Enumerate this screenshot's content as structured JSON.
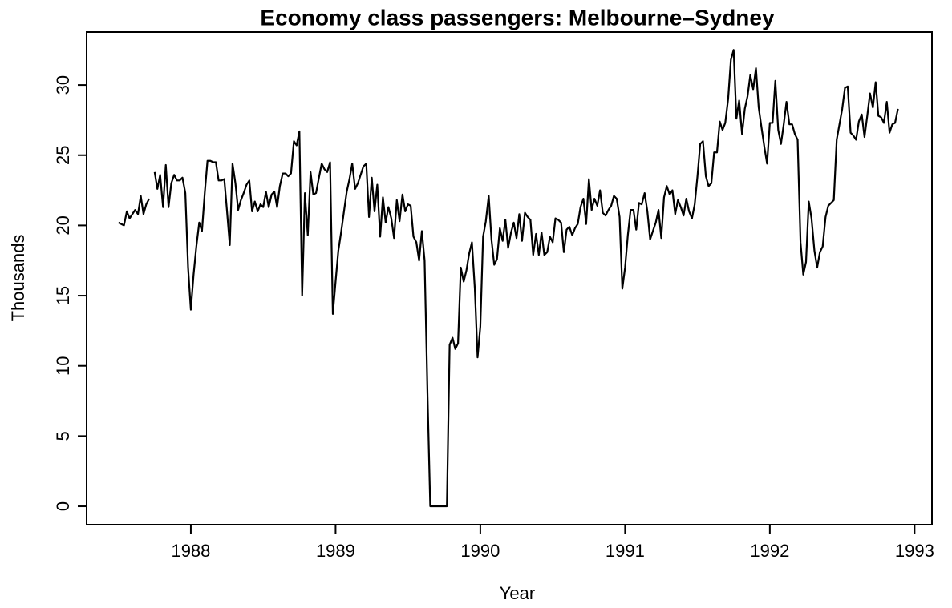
{
  "chart_data": {
    "type": "line",
    "title": "Economy class passengers: Melbourne–Sydney",
    "x_label": "Year",
    "y_label": "Thousands",
    "xlim": [
      1987.28,
      1993.12
    ],
    "ylim": [
      -1.31,
      33.77
    ],
    "xticks": [
      1988,
      1989,
      1990,
      1991,
      1992,
      1993
    ],
    "yticks": [
      0,
      5,
      10,
      15,
      20,
      25,
      30
    ],
    "grid": false,
    "series": [
      {
        "name": "Economy.Class",
        "color": "#000000",
        "x": [
          1987.5,
          1987.519,
          1987.538,
          1987.558,
          1987.577,
          1987.596,
          1987.615,
          1987.635,
          1987.654,
          1987.673,
          1987.692,
          1987.712,
          1987.731,
          1987.75,
          1987.769,
          1987.788,
          1987.808,
          1987.827,
          1987.846,
          1987.865,
          1987.885,
          1987.904,
          1987.923,
          1987.942,
          1987.962,
          1987.981,
          1988,
          1988.019,
          1988.038,
          1988.058,
          1988.077,
          1988.096,
          1988.115,
          1988.135,
          1988.154,
          1988.173,
          1988.192,
          1988.212,
          1988.231,
          1988.25,
          1988.269,
          1988.288,
          1988.308,
          1988.327,
          1988.346,
          1988.365,
          1988.385,
          1988.404,
          1988.423,
          1988.442,
          1988.462,
          1988.481,
          1988.5,
          1988.519,
          1988.538,
          1988.558,
          1988.577,
          1988.596,
          1988.615,
          1988.635,
          1988.654,
          1988.673,
          1988.692,
          1988.712,
          1988.731,
          1988.75,
          1988.769,
          1988.788,
          1988.808,
          1988.827,
          1988.846,
          1988.865,
          1988.885,
          1988.904,
          1988.923,
          1988.942,
          1988.962,
          1988.981,
          1989,
          1989.019,
          1989.038,
          1989.058,
          1989.077,
          1989.096,
          1989.115,
          1989.135,
          1989.154,
          1989.173,
          1989.192,
          1989.212,
          1989.231,
          1989.25,
          1989.269,
          1989.288,
          1989.308,
          1989.327,
          1989.346,
          1989.365,
          1989.385,
          1989.404,
          1989.423,
          1989.442,
          1989.462,
          1989.481,
          1989.5,
          1989.519,
          1989.538,
          1989.558,
          1989.577,
          1989.596,
          1989.615,
          1989.635,
          1989.654,
          1989.673,
          1989.692,
          1989.712,
          1989.731,
          1989.75,
          1989.769,
          1989.788,
          1989.808,
          1989.827,
          1989.846,
          1989.865,
          1989.885,
          1989.904,
          1989.923,
          1989.942,
          1989.962,
          1989.981,
          1990,
          1990.019,
          1990.038,
          1990.058,
          1990.077,
          1990.096,
          1990.115,
          1990.135,
          1990.154,
          1990.173,
          1990.192,
          1990.212,
          1990.231,
          1990.25,
          1990.269,
          1990.288,
          1990.308,
          1990.327,
          1990.346,
          1990.365,
          1990.385,
          1990.404,
          1990.423,
          1990.442,
          1990.462,
          1990.481,
          1990.5,
          1990.519,
          1990.538,
          1990.558,
          1990.577,
          1990.596,
          1990.615,
          1990.635,
          1990.654,
          1990.673,
          1990.692,
          1990.712,
          1990.731,
          1990.75,
          1990.769,
          1990.788,
          1990.808,
          1990.827,
          1990.846,
          1990.865,
          1990.885,
          1990.904,
          1990.923,
          1990.942,
          1990.962,
          1990.981,
          1991,
          1991.019,
          1991.038,
          1991.058,
          1991.077,
          1991.096,
          1991.115,
          1991.135,
          1991.154,
          1991.173,
          1991.192,
          1991.212,
          1991.231,
          1991.25,
          1991.269,
          1991.288,
          1991.308,
          1991.327,
          1991.346,
          1991.365,
          1991.385,
          1991.404,
          1991.423,
          1991.442,
          1991.462,
          1991.481,
          1991.5,
          1991.519,
          1991.538,
          1991.558,
          1991.577,
          1991.596,
          1991.615,
          1991.635,
          1991.654,
          1991.673,
          1991.692,
          1991.712,
          1991.731,
          1991.75,
          1991.769,
          1991.788,
          1991.808,
          1991.827,
          1991.846,
          1991.865,
          1991.885,
          1991.904,
          1991.923,
          1991.942,
          1991.962,
          1991.981,
          1992,
          1992.019,
          1992.038,
          1992.058,
          1992.077,
          1992.096,
          1992.115,
          1992.135,
          1992.154,
          1992.173,
          1992.192,
          1992.212,
          1992.231,
          1992.25,
          1992.269,
          1992.288,
          1992.308,
          1992.327,
          1992.346,
          1992.365,
          1992.385,
          1992.404,
          1992.423,
          1992.442,
          1992.462,
          1992.481,
          1992.5,
          1992.519,
          1992.538,
          1992.558,
          1992.577,
          1992.596,
          1992.615,
          1992.635,
          1992.654,
          1992.673,
          1992.692,
          1992.712,
          1992.731,
          1992.75,
          1992.769,
          1992.788,
          1992.808,
          1992.827,
          1992.846,
          1992.865,
          1992.885
        ],
        "values": [
          20.2,
          20.1,
          20.0,
          21.0,
          20.5,
          20.8,
          21.1,
          20.8,
          22.1,
          20.8,
          21.5,
          21.9,
          null,
          23.8,
          22.6,
          23.6,
          21.3,
          24.3,
          21.3,
          23.0,
          23.6,
          23.2,
          23.2,
          23.4,
          22.3,
          17.0,
          14.0,
          16.5,
          18.5,
          20.2,
          19.6,
          22.3,
          24.6,
          24.6,
          24.5,
          24.5,
          23.2,
          23.2,
          23.3,
          21.0,
          18.6,
          24.4,
          23.0,
          21.1,
          21.8,
          22.3,
          22.9,
          23.2,
          21.0,
          21.7,
          21.0,
          21.5,
          21.3,
          22.4,
          21.3,
          22.2,
          22.4,
          21.3,
          22.8,
          23.7,
          23.7,
          23.5,
          23.7,
          26.0,
          25.7,
          26.7,
          15.0,
          22.3,
          19.3,
          23.8,
          22.2,
          22.3,
          23.4,
          24.4,
          24.0,
          23.8,
          24.5,
          13.7,
          16.0,
          18.2,
          19.5,
          21.0,
          22.4,
          23.3,
          24.4,
          22.6,
          23.0,
          23.6,
          24.2,
          24.4,
          20.6,
          23.4,
          21.0,
          22.9,
          19.2,
          22.0,
          20.2,
          21.3,
          20.5,
          19.1,
          21.8,
          20.3,
          22.2,
          21.0,
          21.5,
          21.4,
          19.2,
          18.8,
          17.5,
          19.6,
          17.5,
          8.0,
          0,
          0,
          0,
          0,
          0,
          0,
          0,
          11.5,
          12.0,
          11.2,
          11.6,
          17.0,
          16.0,
          16.8,
          18.0,
          18.8,
          15.5,
          10.6,
          12.8,
          19.2,
          20.3,
          22.1,
          19.0,
          17.2,
          17.6,
          19.8,
          18.9,
          20.4,
          18.4,
          19.5,
          20.2,
          19.1,
          20.8,
          18.9,
          20.9,
          20.6,
          20.4,
          17.9,
          19.4,
          17.9,
          19.5,
          17.9,
          18.1,
          19.2,
          18.8,
          20.5,
          20.4,
          20.2,
          18.1,
          19.7,
          19.9,
          19.3,
          19.8,
          20.1,
          21.3,
          21.9,
          20.1,
          23.3,
          21.1,
          21.9,
          21.4,
          22.5,
          20.9,
          20.7,
          21.1,
          21.4,
          22.1,
          21.9,
          20.6,
          15.5,
          17.0,
          19.3,
          21.1,
          21.1,
          19.7,
          21.6,
          21.5,
          22.3,
          21.0,
          19.0,
          19.6,
          20.2,
          21.1,
          19.1,
          22.0,
          22.8,
          22.2,
          22.5,
          20.8,
          21.8,
          21.3,
          20.7,
          21.9,
          21.0,
          20.5,
          21.5,
          23.5,
          25.8,
          26.0,
          23.5,
          22.8,
          23.0,
          25.2,
          25.2,
          27.4,
          26.8,
          27.3,
          29.0,
          31.8,
          32.5,
          27.6,
          28.9,
          26.5,
          28.3,
          29.2,
          30.7,
          29.7,
          31.2,
          28.4,
          27.0,
          25.6,
          24.4,
          27.3,
          27.3,
          30.3,
          26.8,
          25.8,
          27.2,
          28.8,
          27.2,
          27.2,
          26.5,
          26.1,
          18.8,
          16.5,
          17.4,
          21.7,
          20.5,
          18.2,
          17.0,
          18.1,
          18.5,
          20.6,
          21.4,
          21.6,
          21.8,
          26.1,
          27.2,
          28.3,
          29.8,
          29.9,
          26.6,
          26.4,
          26.1,
          27.4,
          27.9,
          26.3,
          27.8,
          29.4,
          28.4,
          30.2,
          27.8,
          27.7,
          27.3,
          28.8,
          26.6,
          27.2,
          27.3,
          28.3
        ]
      }
    ]
  }
}
